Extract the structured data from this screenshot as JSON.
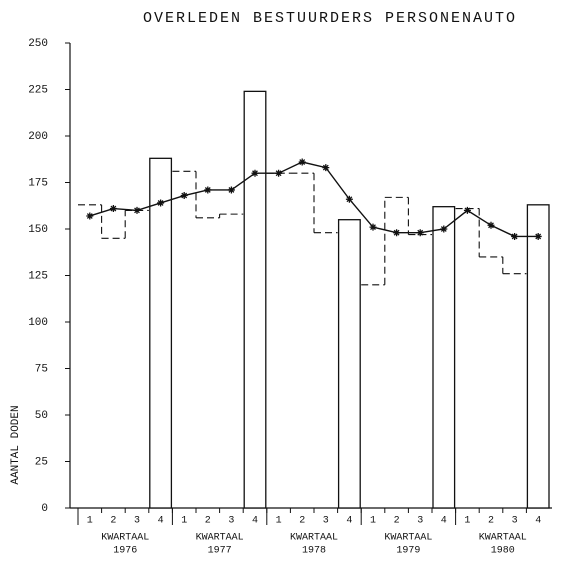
{
  "chart_data": {
    "type": "combo",
    "title": "OVERLEDEN BESTUURDERS PERSONENAUTO",
    "y_label": "AANTAL DODEN",
    "categories": [
      "1",
      "2",
      "3",
      "4",
      "1",
      "2",
      "3",
      "4",
      "1",
      "2",
      "3",
      "4",
      "1",
      "2",
      "3",
      "4",
      "1",
      "2",
      "3",
      "4"
    ],
    "groups": [
      {
        "name": "KWARTAAL",
        "year": "1976"
      },
      {
        "name": "KWARTAAL",
        "year": "1977"
      },
      {
        "name": "KWARTAAL",
        "year": "1978"
      },
      {
        "name": "KWARTAAL",
        "year": "1979"
      },
      {
        "name": "KWARTAAL",
        "year": "1980"
      }
    ],
    "series": [
      {
        "style": "step-dashed",
        "color": "#111",
        "values": [
          163,
          145,
          160,
          null,
          181,
          156,
          158,
          null,
          180,
          180,
          148,
          null,
          120,
          167,
          147,
          null,
          161,
          135,
          126,
          null
        ]
      },
      {
        "style": "bar",
        "color": "#111",
        "values": [
          null,
          null,
          null,
          188,
          null,
          null,
          null,
          224,
          null,
          null,
          null,
          155,
          null,
          null,
          null,
          162,
          null,
          null,
          null,
          163
        ]
      },
      {
        "style": "line-marker",
        "color": "#111",
        "values": [
          157,
          161,
          160,
          164,
          168,
          171,
          171,
          180,
          180,
          186,
          183,
          166,
          151,
          148,
          148,
          150,
          160,
          152,
          146,
          146
        ]
      }
    ],
    "ylim": [
      0,
      250
    ],
    "yticks": [
      0,
      25,
      50,
      75,
      100,
      125,
      150,
      175,
      200,
      225,
      250
    ]
  }
}
